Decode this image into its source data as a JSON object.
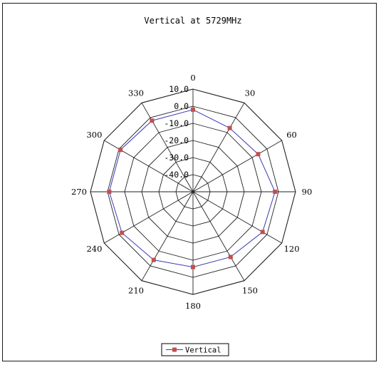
{
  "chart_data": {
    "type": "radar",
    "title": "Vertical at 5729MHz",
    "angles": [
      0,
      30,
      60,
      90,
      120,
      150,
      180,
      210,
      240,
      270,
      300,
      330
    ],
    "angle_labels": [
      "0",
      "30",
      "60",
      "90",
      "120",
      "150",
      "180",
      "210",
      "240",
      "270",
      "300",
      "330"
    ],
    "radial_ticks": [
      10,
      0,
      -10,
      -20,
      -30,
      -40
    ],
    "radial_tick_labels": [
      "10.0",
      "0.0",
      "-10.0",
      "-20.0",
      "-30.0",
      "-40.0"
    ],
    "rlim": [
      -50,
      10
    ],
    "grid": true,
    "legend_position": "bottom",
    "series": [
      {
        "name": "Vertical",
        "values": [
          -2,
          -7,
          -6,
          -2,
          -3,
          -6,
          -6,
          -4,
          -2,
          -1,
          -1,
          -2
        ],
        "color": "#3a3ab8",
        "marker_color": "#c0504d"
      }
    ]
  }
}
